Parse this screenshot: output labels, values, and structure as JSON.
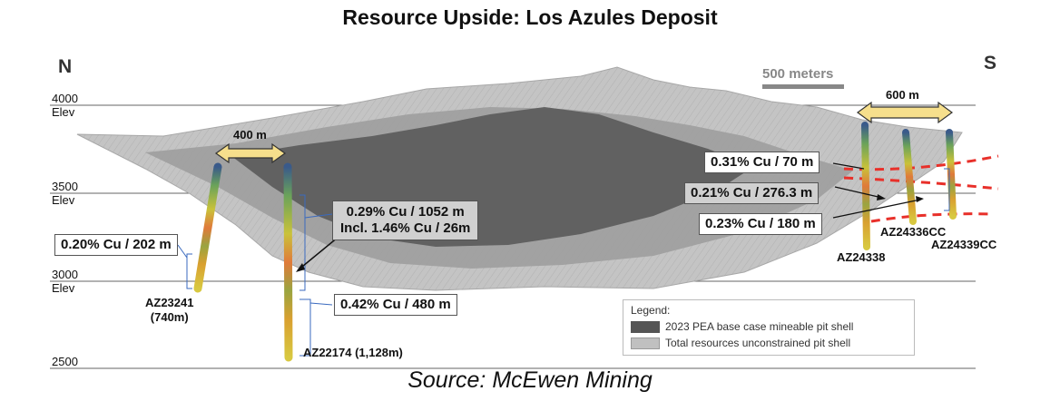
{
  "title": "Resource Upside: Los Azules Deposit",
  "source": "Source: McEwen Mining",
  "directions": {
    "north": "N",
    "south": "S"
  },
  "elevations": [
    {
      "value": "4000",
      "unit": "Elev"
    },
    {
      "value": "3500",
      "unit": "Elev"
    },
    {
      "value": "3000",
      "unit": "Elev"
    },
    {
      "value": "2500",
      "unit": ""
    }
  ],
  "scale_bar": {
    "label": "500 meters"
  },
  "widths": [
    {
      "label": "400 m"
    },
    {
      "label": "600 m"
    }
  ],
  "grades": {
    "az23241": "0.20% Cu / 202 m",
    "az22174_main": "0.29% Cu / 1052 m",
    "az22174_incl": "Incl. 1.46% Cu / 26m",
    "az22174_deep": "0.42% Cu / 480 m",
    "south_1": "0.31% Cu / 70 m",
    "south_2": "0.21% Cu / 276.3 m",
    "south_3": "0.23% Cu / 180 m"
  },
  "drill_holes": {
    "az23241": {
      "name": "AZ23241",
      "depth": "(740m)"
    },
    "az22174": {
      "name": "AZ22174 (1,128m)"
    },
    "az24338": {
      "name": "AZ24338"
    },
    "az24336cc": {
      "name": "AZ24336CC"
    },
    "az24339cc": {
      "name": "AZ24339CC"
    }
  },
  "legend": {
    "title": "Legend:",
    "items": [
      {
        "label": "2023 PEA base case mineable pit shell",
        "color": "#555555"
      },
      {
        "label": "Total resources unconstrained pit shell",
        "color": "#c0c0c0"
      }
    ]
  },
  "colors": {
    "pit_shell_dark": "#5a5a5a",
    "pit_shell_light": "#c4c4c4",
    "arrow_fill": "#f6df8c",
    "dashed_line": "#e8302a"
  }
}
